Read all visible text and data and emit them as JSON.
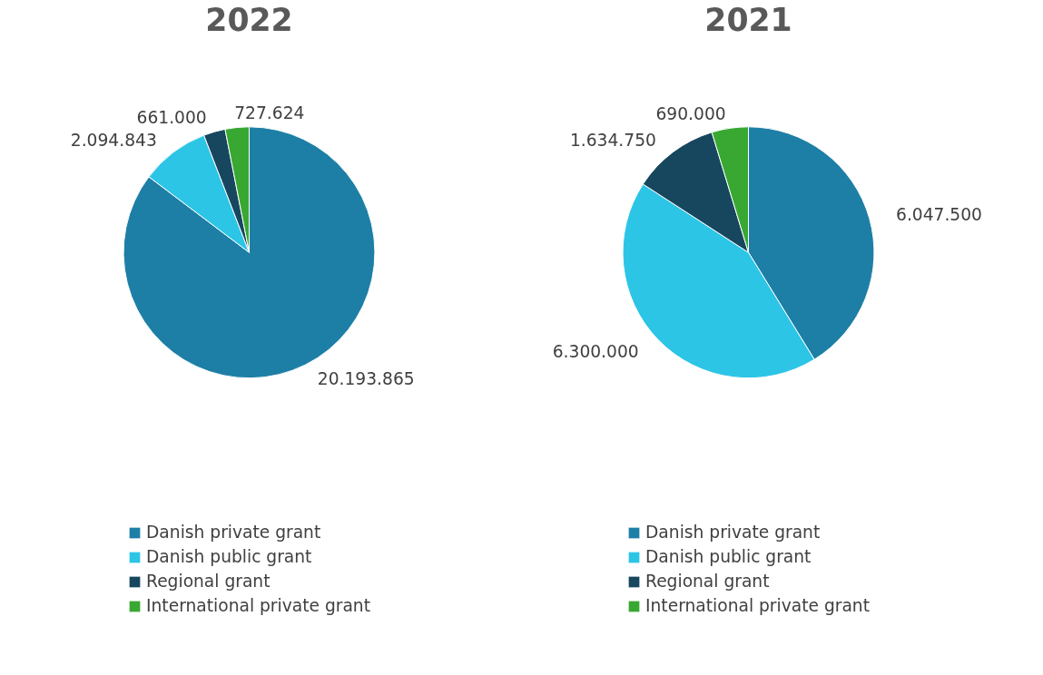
{
  "chart_data": [
    {
      "type": "pie",
      "title": "2022",
      "categories": [
        "Danish private grant",
        "Danish public grant",
        "Regional grant",
        "International private grant"
      ],
      "values": [
        20193865,
        2094843,
        661000,
        727624
      ],
      "value_labels": [
        "20.193.865",
        "2.094.843",
        "661.000",
        "727.624"
      ],
      "colors": [
        "#1d7fa6",
        "#2cc5e6",
        "#17475e",
        "#38a832"
      ],
      "legend": "bottom"
    },
    {
      "type": "pie",
      "title": "2021",
      "categories": [
        "Danish private grant",
        "Danish public grant",
        "Regional grant",
        "International private grant"
      ],
      "values": [
        6047500,
        6300000,
        1634750,
        690000
      ],
      "value_labels": [
        "6.047.500",
        "6.300.000",
        "1.634.750",
        "690.000"
      ],
      "colors": [
        "#1d7fa6",
        "#2cc5e6",
        "#17475e",
        "#38a832"
      ],
      "legend": "bottom"
    }
  ]
}
